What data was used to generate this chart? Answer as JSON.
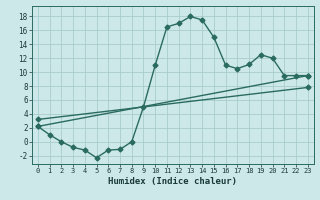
{
  "xlabel": "Humidex (Indice chaleur)",
  "ylabel": "",
  "bg_color": "#cde8e8",
  "grid_color": "#a8cccc",
  "line_color": "#2a6b60",
  "xlim": [
    -0.5,
    23.5
  ],
  "ylim": [
    -3.2,
    19.5
  ],
  "xticks": [
    0,
    1,
    2,
    3,
    4,
    5,
    6,
    7,
    8,
    9,
    10,
    11,
    12,
    13,
    14,
    15,
    16,
    17,
    18,
    19,
    20,
    21,
    22,
    23
  ],
  "yticks": [
    -2,
    0,
    2,
    4,
    6,
    8,
    10,
    12,
    14,
    16,
    18
  ],
  "curve1_x": [
    0,
    1,
    2,
    3,
    4,
    5,
    6,
    7,
    8,
    9,
    10,
    11,
    12,
    13,
    14,
    15,
    16,
    17,
    18,
    19,
    20,
    21,
    22,
    23
  ],
  "curve1_y": [
    2.2,
    1.0,
    0.0,
    -0.8,
    -1.2,
    -2.3,
    -1.2,
    -1.1,
    0.0,
    5.0,
    11.0,
    16.5,
    17.0,
    18.0,
    17.5,
    15.0,
    11.0,
    10.5,
    11.1,
    12.5,
    12.0,
    9.5,
    9.5,
    9.5
  ],
  "curve2_x": [
    0,
    23
  ],
  "curve2_y": [
    2.2,
    9.5
  ],
  "curve3_x": [
    0,
    23
  ],
  "curve3_y": [
    3.2,
    7.8
  ],
  "marker": "D",
  "markersize": 2.5,
  "linewidth": 1.0
}
